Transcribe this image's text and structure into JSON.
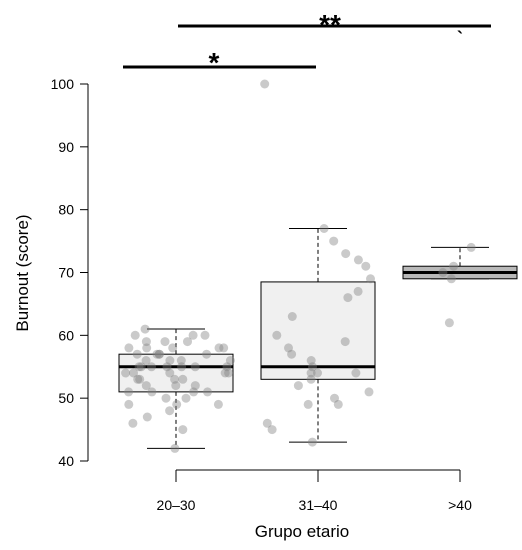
{
  "chart_data": {
    "type": "boxplot",
    "xlabel": "Grupo etario",
    "ylabel": "Burnout (score)",
    "ylim": [
      40,
      100
    ],
    "yticks": [
      40,
      50,
      60,
      70,
      80,
      90,
      100
    ],
    "categories": [
      "20–30",
      "31–40",
      ">40"
    ],
    "boxes": [
      {
        "category": "20–30",
        "whisker_low": 42,
        "q1": 51,
        "median": 55,
        "q3": 57,
        "whisker_high": 61
      },
      {
        "category": "31–40",
        "whisker_low": 43,
        "q1": 53,
        "median": 55,
        "q3": 68.5,
        "whisker_high": 77
      },
      {
        "category": ">40",
        "whisker_low": 69,
        "q1": 69,
        "median": 70,
        "q3": 71,
        "whisker_high": 74
      }
    ],
    "points": [
      [
        42,
        45,
        46,
        47,
        48,
        49,
        49,
        49,
        50,
        50,
        51,
        51,
        51,
        51,
        52,
        52,
        52,
        53,
        53,
        53,
        53,
        54,
        54,
        54,
        54,
        54,
        55,
        55,
        55,
        55,
        55,
        55,
        55,
        56,
        56,
        56,
        56,
        57,
        57,
        57,
        57,
        57,
        58,
        58,
        58,
        58,
        58,
        59,
        59,
        59,
        60,
        60,
        60,
        61
      ],
      [
        43,
        45,
        46,
        49,
        49,
        50,
        51,
        52,
        53,
        54,
        54,
        54,
        55,
        56,
        57,
        58,
        59,
        60,
        63,
        66,
        67,
        69,
        71,
        72,
        73,
        75,
        77,
        100
      ],
      [
        62,
        69,
        70,
        71,
        74
      ]
    ],
    "significance": [
      {
        "from": "20–30",
        "to": "31–40",
        "label": "*"
      },
      {
        "from": "20–30",
        "to": ">40",
        "label": "**"
      },
      {
        "from": ">40",
        "to": ">40",
        "label": "`"
      }
    ],
    "colors": {
      "box_fill": [
        "#f0f0f0",
        "#f0f0f0",
        "#b9b9b9"
      ],
      "point": "#808080"
    }
  }
}
